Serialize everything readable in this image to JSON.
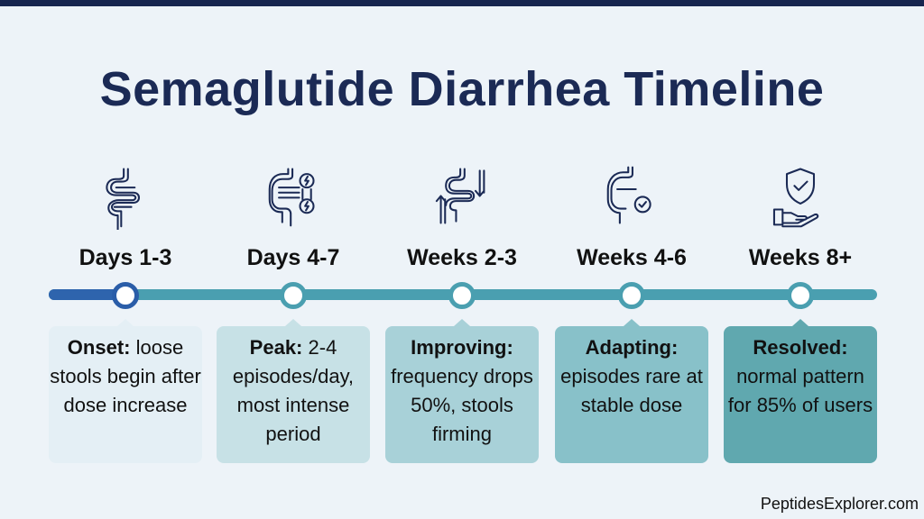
{
  "title": "Semaglutide Diarrhea Timeline",
  "stages": [
    {
      "label": "Days 1-3",
      "icon": "intestine-icon",
      "heading": "Onset:",
      "text": "loose stools begin after dose increase",
      "color": "#e4eff5"
    },
    {
      "label": "Days 4-7",
      "icon": "intestine-cramp-icon",
      "heading": "Peak:",
      "text": "2-4 episodes/day, most intense period",
      "color": "#c7e1e6"
    },
    {
      "label": "Weeks 2-3",
      "icon": "intestine-arrows-icon",
      "heading": "Improving:",
      "text": "frequency drops 50%, stools firming",
      "color": "#a8d1d8"
    },
    {
      "label": "Weeks 4-6",
      "icon": "intestine-check-icon",
      "heading": "Adapting:",
      "text": "episodes rare at stable dose",
      "color": "#88c1c9"
    },
    {
      "label": "Weeks 8+",
      "icon": "shield-hand-icon",
      "heading": "Resolved:",
      "text": "normal pattern for 85% of users",
      "color": "#60a8af"
    }
  ],
  "footer": "PeptidesExplorer.com",
  "colors": {
    "title": "#1b2a55",
    "track": "#4a9fb0",
    "track_start": "#2e64ad"
  }
}
